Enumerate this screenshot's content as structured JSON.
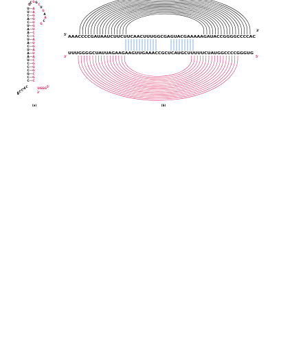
{
  "colors": {
    "strand_a": "#000000",
    "strand_b": "#e0245e",
    "intermolecular": "#4a90d9"
  },
  "panel_a": {
    "caption": "(a)",
    "end_labels": [
      "3'",
      "5'",
      "5'",
      "3'"
    ],
    "left_column": [
      "U",
      "U",
      "C",
      "A",
      "C",
      "U",
      "A",
      "A",
      "C",
      "U",
      "A",
      "C",
      "U",
      "A",
      "A",
      "U",
      "C",
      "C",
      "C",
      "G",
      "C",
      "C"
    ],
    "right_column": [
      "A",
      "A",
      "G",
      "G",
      "U",
      "G",
      "U",
      "C",
      "C",
      "A",
      "U",
      "G",
      "A",
      "U",
      "A",
      "C",
      "G",
      "G",
      "G",
      "C",
      "G",
      "C"
    ],
    "top_loop": [
      "C",
      "C",
      "G",
      "G",
      "C",
      "U",
      "G",
      "A",
      "A",
      "C",
      "G"
    ],
    "bottom_left": [
      "C",
      "A",
      "C",
      "C",
      "C"
    ],
    "bottom_right": [
      "U",
      "G",
      "G",
      "G"
    ]
  },
  "panel_b": {
    "caption": "(b)",
    "top_strand": {
      "label_5": "5'",
      "label_3": "3'",
      "sequence": "AAACCCCGAUAAUCUUCUUCAACUUUGGCGAGUACGAAAAAGAUACCGGGGCCCCAC"
    },
    "bottom_strand": {
      "label_3": "3'",
      "label_5": "5'",
      "sequence": "UUUGGGGCUAUUAGAAGAAGUUGAAACCGCUCAUGCUUUUUCUAUGGCCCCGGGUG"
    }
  }
}
